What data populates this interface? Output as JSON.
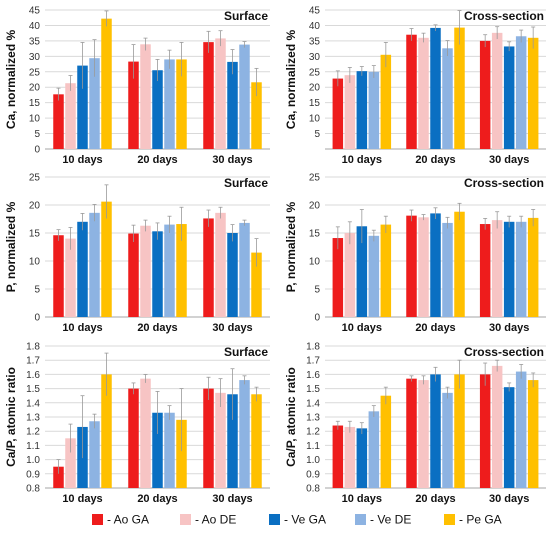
{
  "legend": [
    {
      "name": "- Ao GA",
      "color": "#ee1c1c"
    },
    {
      "name": "- Ao DE",
      "color": "#f7c4c4"
    },
    {
      "name": "- Ve GA",
      "color": "#0a6fc2"
    },
    {
      "name": "- Ve DE",
      "color": "#8db3e2"
    },
    {
      "name": "- Pe GA",
      "color": "#ffc000"
    }
  ],
  "chart_data": [
    {
      "type": "bar",
      "title": "Surface",
      "ylabel": "Ca, normalized %",
      "categories": [
        "10 days",
        "20 days",
        "30 days"
      ],
      "ylim": [
        0,
        45
      ],
      "yticks": [
        0,
        5,
        10,
        15,
        20,
        25,
        30,
        35,
        40,
        45
      ],
      "series": [
        {
          "name": "- Ao GA",
          "values": [
            17.7,
            28.3,
            34.6
          ],
          "errors": [
            2.0,
            5.5,
            3.5
          ]
        },
        {
          "name": "- Ao DE",
          "values": [
            21.3,
            33.9,
            35.8
          ],
          "errors": [
            2.5,
            2.0,
            2.5
          ]
        },
        {
          "name": "- Ve GA",
          "values": [
            27.0,
            25.5,
            28.2
          ],
          "errors": [
            7.5,
            3.5,
            4.0
          ]
        },
        {
          "name": "- Ve DE",
          "values": [
            29.4,
            29.0,
            33.8
          ],
          "errors": [
            6.0,
            3.0,
            1.0
          ]
        },
        {
          "name": "- Pe GA",
          "values": [
            42.2,
            29.0,
            21.6
          ],
          "errors": [
            2.5,
            5.5,
            4.5
          ]
        }
      ]
    },
    {
      "type": "bar",
      "title": "Cross-section",
      "ylabel": "Ca, normalized %",
      "categories": [
        "10 days",
        "20 days",
        "30 days"
      ],
      "ylim": [
        0,
        45
      ],
      "yticks": [
        5,
        10,
        15,
        20,
        25,
        30,
        35,
        40,
        45
      ],
      "series": [
        {
          "name": "- Ao GA",
          "values": [
            22.8,
            37.0,
            35.0
          ],
          "errors": [
            2.5,
            2.0,
            2.0
          ]
        },
        {
          "name": "- Ao DE",
          "values": [
            23.9,
            36.0,
            37.6
          ],
          "errors": [
            2.5,
            1.5,
            2.0
          ]
        },
        {
          "name": "- Ve GA",
          "values": [
            25.2,
            39.2,
            33.2
          ],
          "errors": [
            1.5,
            1.0,
            1.5
          ]
        },
        {
          "name": "- Ve DE",
          "values": [
            25.0,
            32.6,
            36.5
          ],
          "errors": [
            2.0,
            2.5,
            2.0
          ]
        },
        {
          "name": "- Pe GA",
          "values": [
            30.5,
            39.3,
            36.0
          ],
          "errors": [
            4.0,
            5.5,
            3.5
          ]
        }
      ]
    },
    {
      "type": "bar",
      "title": "Surface",
      "ylabel": "P, normalized %",
      "categories": [
        "10 days",
        "20 days",
        "30 days"
      ],
      "ylim": [
        0,
        25
      ],
      "yticks": [
        0,
        5,
        10,
        15,
        20,
        25
      ],
      "series": [
        {
          "name": "- Ao GA",
          "values": [
            14.6,
            14.9,
            17.6
          ],
          "errors": [
            1.0,
            1.5,
            1.5
          ]
        },
        {
          "name": "- Ao DE",
          "values": [
            14.0,
            16.3,
            18.6
          ],
          "errors": [
            2.0,
            1.0,
            1.0
          ]
        },
        {
          "name": "- Ve GA",
          "values": [
            17.0,
            15.3,
            15.0
          ],
          "errors": [
            1.5,
            1.5,
            1.5
          ]
        },
        {
          "name": "- Ve DE",
          "values": [
            18.6,
            16.5,
            16.8
          ],
          "errors": [
            1.5,
            1.5,
            0.5
          ]
        },
        {
          "name": "- Pe GA",
          "values": [
            20.6,
            16.6,
            11.5
          ],
          "errors": [
            3.0,
            3.0,
            2.5
          ]
        }
      ]
    },
    {
      "type": "bar",
      "title": "Cross-section",
      "ylabel": "P, normalized %",
      "categories": [
        "10 days",
        "20 days",
        "30 days"
      ],
      "ylim": [
        0,
        25
      ],
      "yticks": [
        0,
        5,
        10,
        15,
        20,
        25
      ],
      "series": [
        {
          "name": "- Ao GA",
          "values": [
            14.1,
            18.1,
            16.6
          ],
          "errors": [
            2.0,
            1.0,
            1.0
          ]
        },
        {
          "name": "- Ao DE",
          "values": [
            15.0,
            17.8,
            17.3
          ],
          "errors": [
            2.0,
            0.5,
            1.5
          ]
        },
        {
          "name": "- Ve GA",
          "values": [
            16.2,
            18.5,
            17.0
          ],
          "errors": [
            3.0,
            1.0,
            1.0
          ]
        },
        {
          "name": "- Ve DE",
          "values": [
            14.5,
            16.8,
            17.0
          ],
          "errors": [
            1.0,
            1.0,
            1.0
          ]
        },
        {
          "name": "- Pe GA",
          "values": [
            16.5,
            18.8,
            17.7
          ],
          "errors": [
            1.5,
            1.5,
            1.5
          ]
        }
      ]
    },
    {
      "type": "bar",
      "title": "Surface",
      "ylabel": "Ca/P, atomic ratio",
      "categories": [
        "10 days",
        "20 days",
        "30 days"
      ],
      "ylim": [
        0.8,
        1.8
      ],
      "yticks": [
        0.8,
        0.9,
        1.0,
        1.1,
        1.2,
        1.3,
        1.4,
        1.5,
        1.6,
        1.7,
        1.8
      ],
      "series": [
        {
          "name": "- Ao GA",
          "values": [
            0.95,
            1.5,
            1.5
          ],
          "errors": [
            0.05,
            0.04,
            0.08
          ]
        },
        {
          "name": "- Ao DE",
          "values": [
            1.15,
            1.57,
            1.47
          ],
          "errors": [
            0.1,
            0.03,
            0.1
          ]
        },
        {
          "name": "- Ve GA",
          "values": [
            1.23,
            1.33,
            1.46
          ],
          "errors": [
            0.22,
            0.15,
            0.18
          ]
        },
        {
          "name": "- Ve DE",
          "values": [
            1.27,
            1.33,
            1.56
          ],
          "errors": [
            0.05,
            0.05,
            0.03
          ]
        },
        {
          "name": "- Pe GA",
          "values": [
            1.6,
            1.28,
            1.46
          ],
          "errors": [
            0.15,
            0.22,
            0.05
          ]
        }
      ]
    },
    {
      "type": "bar",
      "title": "Cross-section",
      "ylabel": "Ca/P, atomic ratio",
      "categories": [
        "10 days",
        "20 days",
        "30 days"
      ],
      "ylim": [
        0.8,
        1.8
      ],
      "yticks": [
        0.8,
        0.9,
        1.0,
        1.1,
        1.2,
        1.3,
        1.4,
        1.5,
        1.6,
        1.7,
        1.8
      ],
      "series": [
        {
          "name": "- Ao GA",
          "values": [
            1.24,
            1.57,
            1.6
          ],
          "errors": [
            0.03,
            0.02,
            0.08
          ]
        },
        {
          "name": "- Ao DE",
          "values": [
            1.23,
            1.56,
            1.66
          ],
          "errors": [
            0.04,
            0.03,
            0.04
          ]
        },
        {
          "name": "- Ve GA",
          "values": [
            1.22,
            1.6,
            1.51
          ],
          "errors": [
            0.04,
            0.05,
            0.03
          ]
        },
        {
          "name": "- Ve DE",
          "values": [
            1.34,
            1.47,
            1.62
          ],
          "errors": [
            0.04,
            0.04,
            0.05
          ]
        },
        {
          "name": "- Pe GA",
          "values": [
            1.45,
            1.6,
            1.56
          ],
          "errors": [
            0.06,
            0.1,
            0.05
          ]
        }
      ]
    }
  ]
}
